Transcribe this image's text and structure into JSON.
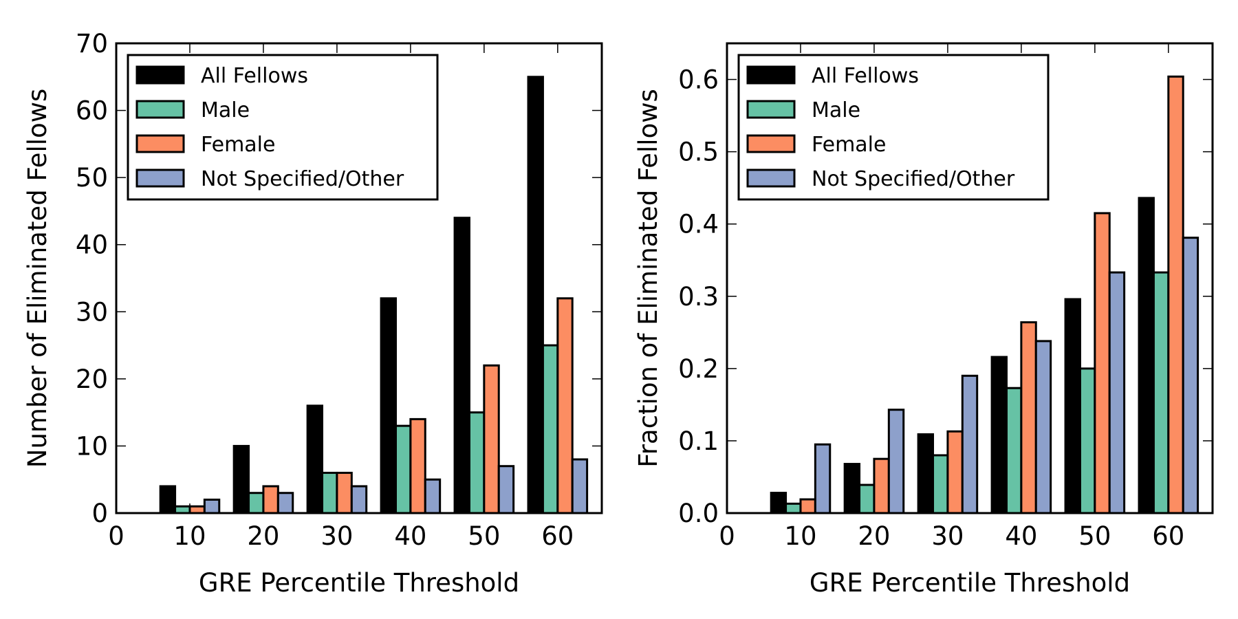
{
  "colors": {
    "all_fellows": "#000000",
    "male": "#66c2a5",
    "female": "#fc8d62",
    "not_specified": "#8da0cb"
  },
  "chart_data": [
    {
      "type": "bar",
      "xlabel": "GRE Percentile Threshold",
      "ylabel": "Number of Eliminated Fellows",
      "xlim": [
        0,
        66
      ],
      "ylim": [
        0,
        70
      ],
      "xticks": [
        0,
        10,
        20,
        30,
        40,
        50,
        60
      ],
      "yticks": [
        0,
        10,
        20,
        30,
        40,
        50,
        60,
        70
      ],
      "ytick_labels": [
        "0",
        "10",
        "20",
        "30",
        "40",
        "50",
        "60",
        "70"
      ],
      "x": [
        10,
        20,
        30,
        40,
        50,
        60
      ],
      "bar_width_units": 2,
      "legend_position": "top-left",
      "series": [
        {
          "name": "All Fellows",
          "color_key": "all_fellows",
          "values": [
            4,
            10,
            16,
            32,
            44,
            65
          ]
        },
        {
          "name": "Male",
          "color_key": "male",
          "values": [
            1,
            3,
            6,
            13,
            15,
            25
          ]
        },
        {
          "name": "Female",
          "color_key": "female",
          "values": [
            1,
            4,
            6,
            14,
            22,
            32
          ]
        },
        {
          "name": "Not Specified/Other",
          "color_key": "not_specified",
          "values": [
            2,
            3,
            4,
            5,
            7,
            8
          ]
        }
      ]
    },
    {
      "type": "bar",
      "xlabel": "GRE Percentile Threshold",
      "ylabel": "Fraction of Eliminated Fellows",
      "xlim": [
        0,
        66
      ],
      "ylim": [
        0,
        0.65
      ],
      "xticks": [
        0,
        10,
        20,
        30,
        40,
        50,
        60
      ],
      "yticks": [
        0,
        0.1,
        0.2,
        0.3,
        0.4,
        0.5,
        0.6
      ],
      "ytick_labels": [
        "0.0",
        "0.1",
        "0.2",
        "0.3",
        "0.4",
        "0.5",
        "0.6"
      ],
      "x": [
        10,
        20,
        30,
        40,
        50,
        60
      ],
      "bar_width_units": 2,
      "legend_position": "top-left",
      "series": [
        {
          "name": "All Fellows",
          "color_key": "all_fellows",
          "values": [
            0.028,
            0.068,
            0.109,
            0.216,
            0.296,
            0.436
          ]
        },
        {
          "name": "Male",
          "color_key": "male",
          "values": [
            0.013,
            0.039,
            0.08,
            0.173,
            0.2,
            0.333
          ]
        },
        {
          "name": "Female",
          "color_key": "female",
          "values": [
            0.019,
            0.075,
            0.113,
            0.264,
            0.415,
            0.604
          ]
        },
        {
          "name": "Not Specified/Other",
          "color_key": "not_specified",
          "values": [
            0.095,
            0.143,
            0.19,
            0.238,
            0.333,
            0.381
          ]
        }
      ]
    }
  ]
}
